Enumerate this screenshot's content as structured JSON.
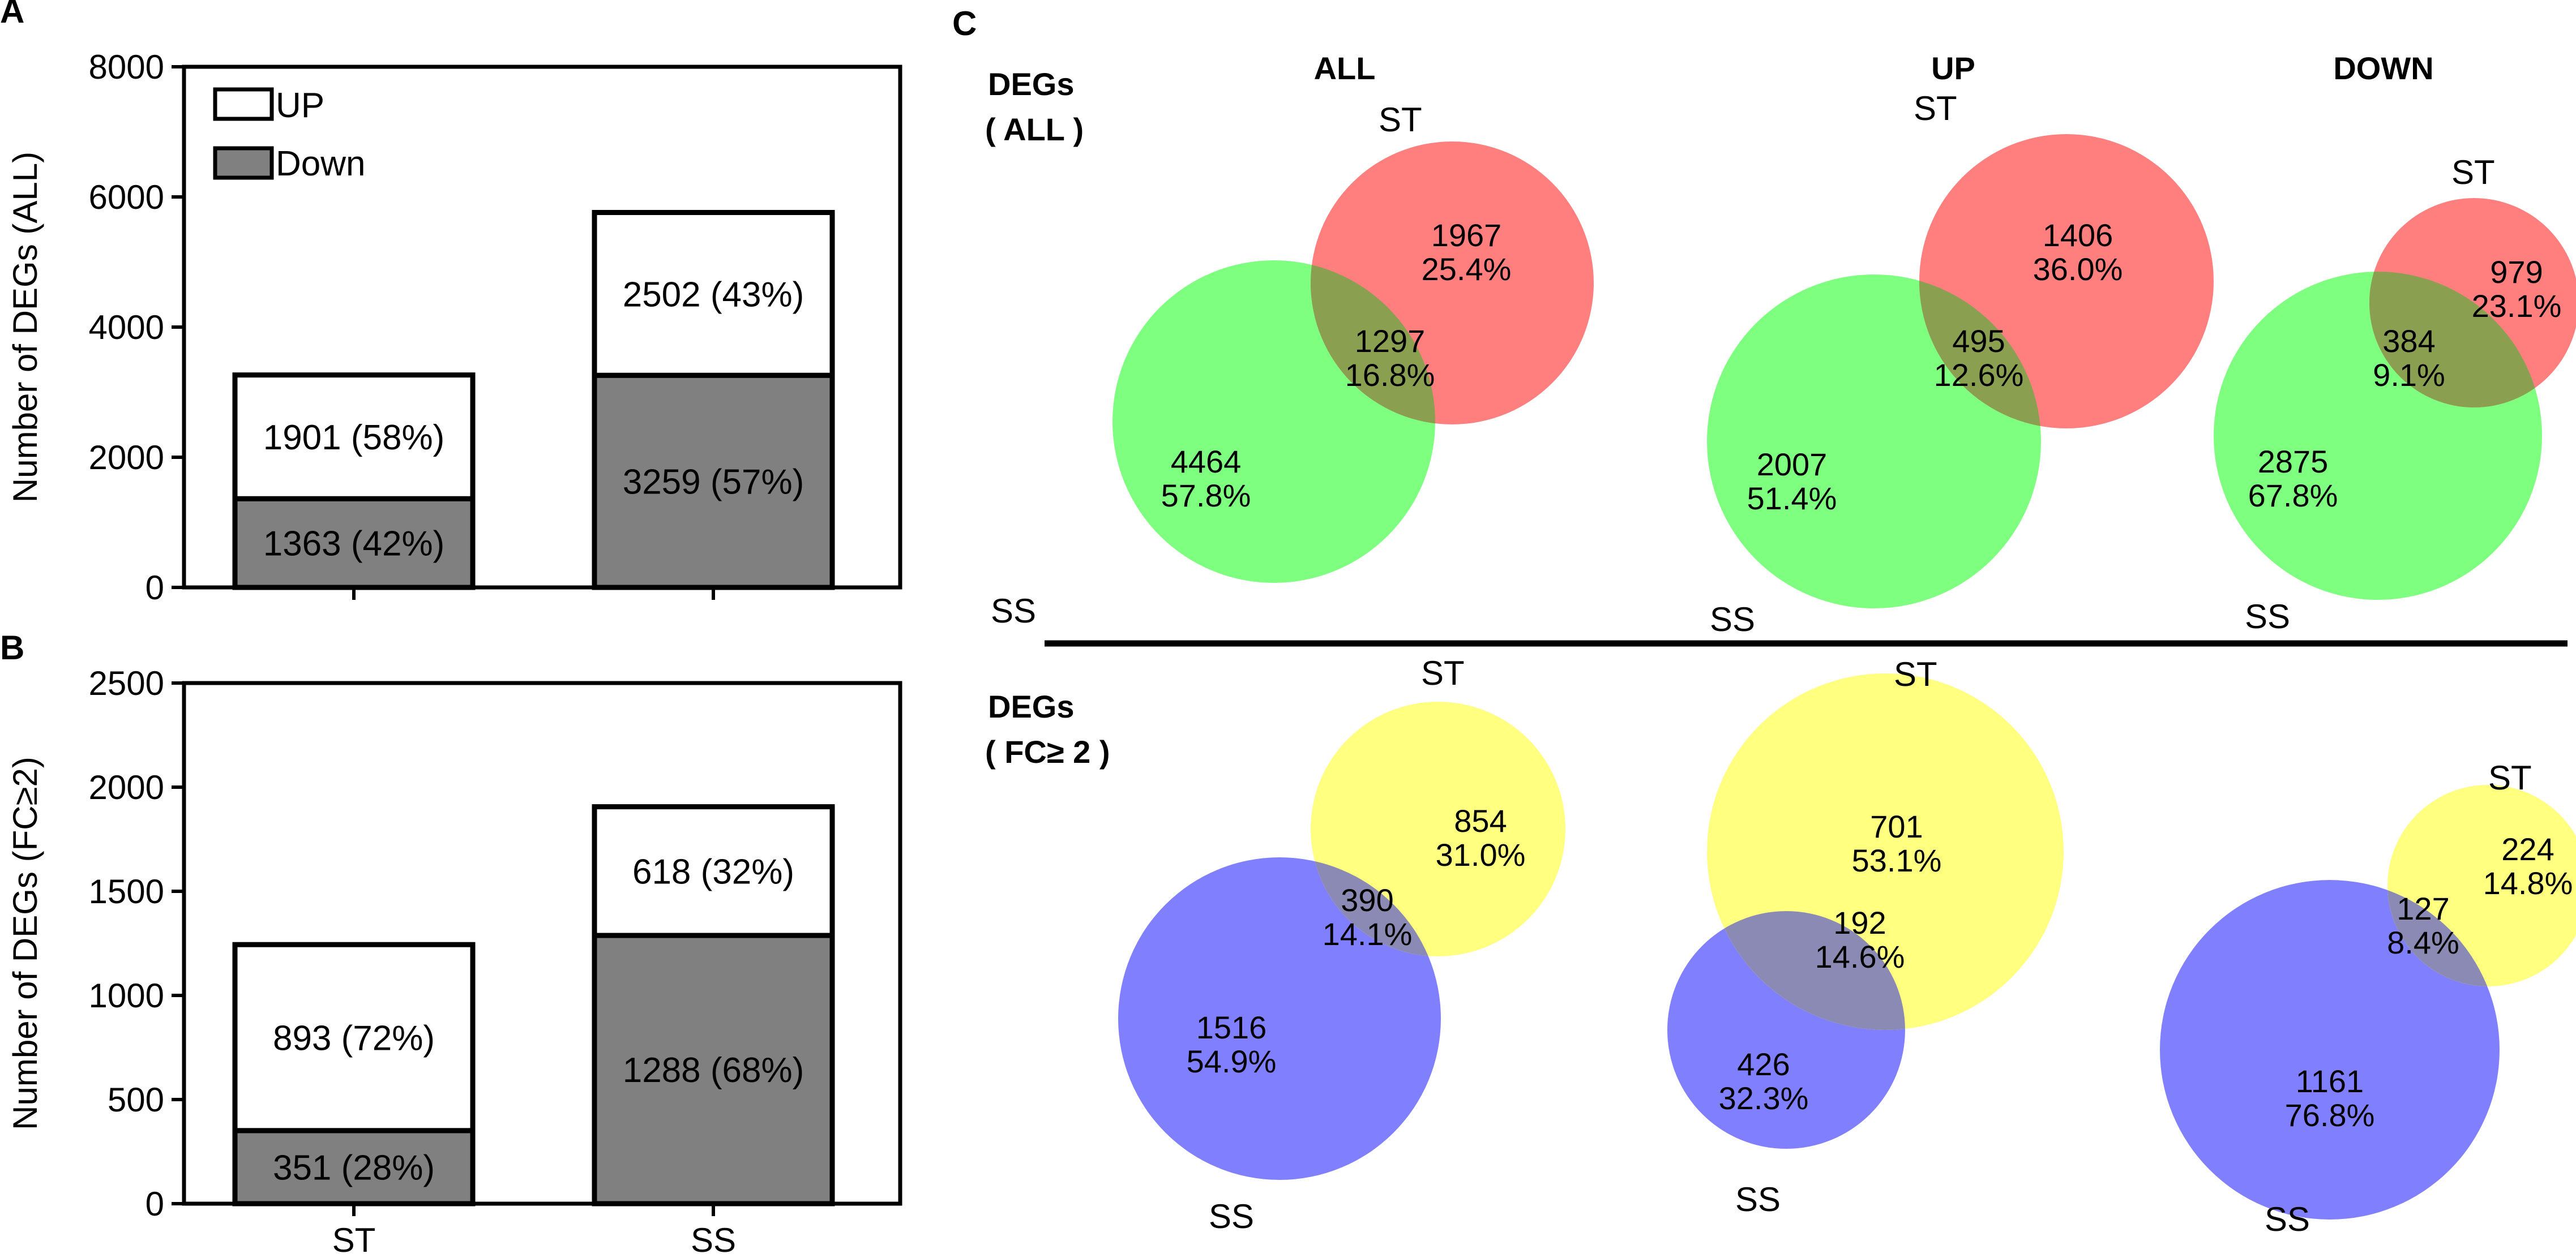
{
  "panels": {
    "A": "A",
    "B": "B",
    "C": "C"
  },
  "chart_data": [
    {
      "id": "A",
      "type": "bar",
      "stacked": true,
      "categories": [
        "ST",
        "SS"
      ],
      "series": [
        {
          "name": "Down",
          "values": [
            1363,
            3259
          ],
          "labels": [
            "1363 (42%)",
            "3259 (57%)"
          ],
          "color": "#808080"
        },
        {
          "name": "UP",
          "values": [
            1901,
            2502
          ],
          "labels": [
            "1901 (58%)",
            "2502 (43%)"
          ],
          "color": "#ffffff"
        }
      ],
      "ylabel": "Number of DEGs (ALL)",
      "ylim": [
        0,
        8000
      ],
      "yticks": [
        0,
        2000,
        4000,
        6000,
        8000
      ],
      "legend": [
        {
          "label": "UP",
          "color": "#ffffff"
        },
        {
          "label": "Down",
          "color": "#808080"
        }
      ],
      "legend_position": "top-left",
      "show_xticklabels": false
    },
    {
      "id": "B",
      "type": "bar",
      "stacked": true,
      "categories": [
        "ST",
        "SS"
      ],
      "series": [
        {
          "name": "Down",
          "values": [
            351,
            1288
          ],
          "labels": [
            "351 (28%)",
            "1288 (68%)"
          ],
          "color": "#808080"
        },
        {
          "name": "UP",
          "values": [
            893,
            618
          ],
          "labels": [
            "893 (72%)",
            "618 (32%)"
          ],
          "color": "#ffffff"
        }
      ],
      "ylabel": "Number of DEGs (FC≥2)",
      "ylim": [
        0,
        2500
      ],
      "yticks": [
        0,
        500,
        1000,
        1500,
        2000,
        2500
      ],
      "show_xticklabels": true
    },
    {
      "id": "C",
      "type": "venn",
      "columns": [
        "ALL",
        "UP",
        "DOWN"
      ],
      "rows": [
        {
          "label_line1": "DEGs",
          "label_line2": "( ALL )",
          "st_color": "#ff7f7f",
          "ss_color": "#7fff7f",
          "overlap_color": "#8aa050",
          "diagrams": [
            {
              "st_label": "ST",
              "ss_label": "SS",
              "st_only": "1967",
              "st_only_pct": "25.4%",
              "both": "1297",
              "both_pct": "16.8%",
              "ss_only": "4464",
              "ss_only_pct": "57.8%"
            },
            {
              "st_label": "ST",
              "ss_label": "SS",
              "st_only": "1406",
              "st_only_pct": "36.0%",
              "both": "495",
              "both_pct": "12.6%",
              "ss_only": "2007",
              "ss_only_pct": "51.4%"
            },
            {
              "st_label": "ST",
              "ss_label": "SS",
              "st_only": "979",
              "st_only_pct": "23.1%",
              "both": "384",
              "both_pct": "9.1%",
              "ss_only": "2875",
              "ss_only_pct": "67.8%"
            }
          ]
        },
        {
          "label_line1": "DEGs",
          "label_line2": "( FC≥ 2 )",
          "st_color": "#ffff80",
          "ss_color": "#8080ff",
          "overlap_color": "#8a8ab5",
          "diagrams": [
            {
              "st_label": "ST",
              "ss_label": "SS",
              "st_only": "854",
              "st_only_pct": "31.0%",
              "both": "390",
              "both_pct": "14.1%",
              "ss_only": "1516",
              "ss_only_pct": "54.9%"
            },
            {
              "st_label": "ST",
              "ss_label": "SS",
              "st_only": "701",
              "st_only_pct": "53.1%",
              "both": "192",
              "both_pct": "14.6%",
              "ss_only": "426",
              "ss_only_pct": "32.3%"
            },
            {
              "st_label": "ST",
              "ss_label": "SS",
              "st_only": "224",
              "st_only_pct": "14.8%",
              "both": "127",
              "both_pct": "8.4%",
              "ss_only": "1161",
              "ss_only_pct": "76.8%"
            }
          ]
        }
      ]
    }
  ]
}
